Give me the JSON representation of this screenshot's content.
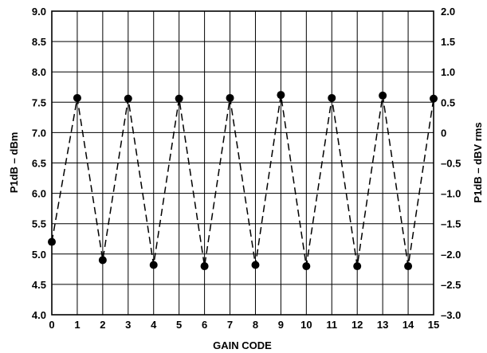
{
  "chart_data": {
    "type": "line",
    "xlabel": "GAIN CODE",
    "ylabel": "P1dB – dBm",
    "ylabel_right": "P1dB – dBV rms",
    "xlim": [
      0,
      15
    ],
    "ylim": [
      4.0,
      9.0
    ],
    "ylim_right": [
      -3.0,
      2.0
    ],
    "x_ticks": [
      0,
      1,
      2,
      3,
      4,
      5,
      6,
      7,
      8,
      9,
      10,
      11,
      12,
      13,
      14,
      15
    ],
    "y_ticks": [
      "4.0",
      "4.5",
      "5.0",
      "5.5",
      "6.0",
      "6.5",
      "7.0",
      "7.5",
      "8.0",
      "8.5",
      "9.0"
    ],
    "y_ticks_right": [
      "–3.0",
      "–2.5",
      "–2.0",
      "–1.5",
      "–1.0",
      "–0.5",
      "0",
      "0.5",
      "1.0",
      "1.5",
      "2.0"
    ],
    "grid": true,
    "series": [
      {
        "x": [
          0,
          1,
          2,
          3,
          4,
          5,
          6,
          7,
          8,
          9,
          10,
          11,
          12,
          13,
          14,
          15
        ],
        "values": [
          5.2,
          7.57,
          4.9,
          7.56,
          4.82,
          7.56,
          4.8,
          7.57,
          4.82,
          7.62,
          4.8,
          7.57,
          4.8,
          7.61,
          4.8,
          7.56
        ]
      }
    ]
  }
}
